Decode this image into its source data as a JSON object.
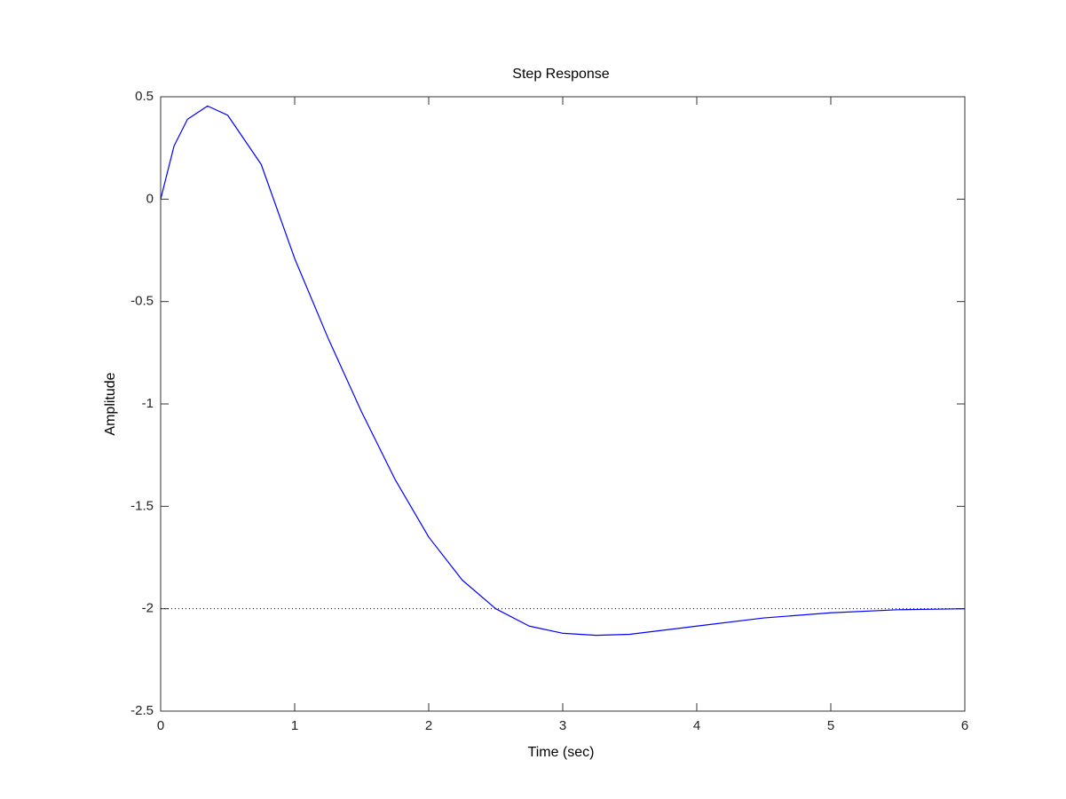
{
  "chart_data": {
    "type": "line",
    "title": "Step Response",
    "x_label": "Time (sec)",
    "y_label": "Amplitude",
    "x": [
      0,
      0.1,
      0.2,
      0.35,
      0.5,
      0.75,
      1.0,
      1.25,
      1.5,
      1.75,
      2.0,
      2.25,
      2.5,
      2.75,
      3.0,
      3.25,
      3.5,
      3.75,
      4.0,
      4.5,
      5.0,
      5.5,
      6.0
    ],
    "series": [
      {
        "color": "#0000ff",
        "values": [
          0,
          0.26,
          0.39,
          0.455,
          0.41,
          0.17,
          -0.29,
          -0.68,
          -1.04,
          -1.37,
          -1.65,
          -1.86,
          -2.0,
          -2.085,
          -2.12,
          -2.13,
          -2.125,
          -2.105,
          -2.085,
          -2.045,
          -2.02,
          -2.005,
          -2.0
        ]
      }
    ],
    "final_value": -2,
    "xlim": [
      0,
      6
    ],
    "xticks": [
      0,
      1,
      2,
      3,
      4,
      5,
      6
    ],
    "ylim": [
      -2.5,
      0.5
    ],
    "yticks": [
      -2.5,
      -2,
      -1.5,
      -1,
      -0.5,
      0,
      0.5
    ],
    "grid": false
  }
}
